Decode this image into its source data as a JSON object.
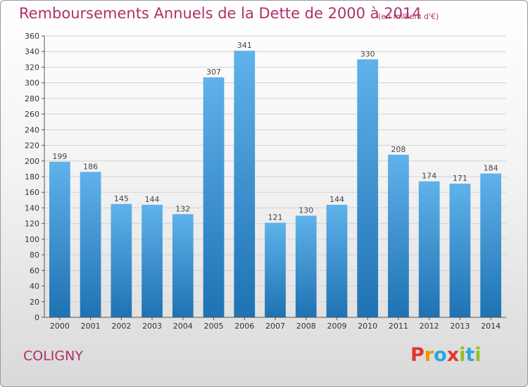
{
  "title": "Remboursements Annuels de la Dette de 2000 à 2014",
  "subtitle": "(en milliers d'€)",
  "commune": "COLIGNY",
  "logo_text": "Proxiti",
  "colors": {
    "title": "#b0306a",
    "bar_top": "#5fb2ea",
    "bar_bottom": "#1f72b3",
    "grid": "#d2d2d2",
    "logo": [
      "#e6332a",
      "#f29400",
      "#2aa7de",
      "#e6332a",
      "#95c11f",
      "#2aa7de",
      "#95c11f"
    ]
  },
  "chart_data": {
    "type": "bar",
    "title": "Remboursements Annuels de la Dette de 2000 à 2014",
    "xlabel": "",
    "ylabel": "",
    "categories": [
      "2000",
      "2001",
      "2002",
      "2003",
      "2004",
      "2005",
      "2006",
      "2007",
      "2008",
      "2009",
      "2010",
      "2011",
      "2012",
      "2013",
      "2014"
    ],
    "values": [
      199,
      186,
      145,
      144,
      132,
      307,
      341,
      121,
      130,
      144,
      330,
      208,
      174,
      171,
      184
    ],
    "ylim": [
      0,
      360
    ],
    "ytick_step": 20,
    "grid": true,
    "legend": "none"
  }
}
